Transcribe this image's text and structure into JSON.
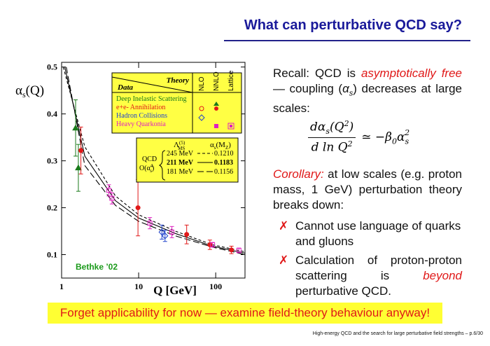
{
  "header": {
    "title": "What can perturbative QCD say?"
  },
  "recall": [
    "Recall:  QCD is ",
    "asymptotically free",
    " — coupling (",
    "α",
    "s",
    ") decreases at large scales:"
  ],
  "formula": {
    "num": [
      "dα",
      "s",
      "(Q",
      "2",
      ")"
    ],
    "den": [
      "d ln Q",
      "2"
    ],
    "rhs": [
      "≃ −β",
      "0",
      "α",
      "s",
      "2"
    ]
  },
  "corollary": [
    "Corollary:",
    " at low scales (e.g. proton mass, 1 GeV) perturbation theory breaks down:"
  ],
  "bullets": [
    {
      "mark": "✗",
      "text": [
        "Cannot use language of quarks and gluons"
      ]
    },
    {
      "mark": "✗",
      "text": [
        "Calculation of proton-proton scattering is ",
        "beyond",
        " perturbative QCD."
      ]
    }
  ],
  "banner": "Forget applicability for now — examine field-theory behaviour anyway!",
  "footer": "High-energy QCD and the search for large perturbative field strengths – p.6/30",
  "chart_data": {
    "type": "scatter",
    "xlabel": "Q [GeV]",
    "ylabel": [
      "α",
      "s",
      "(Q)"
    ],
    "annotation": "Bethke ’02",
    "log_x": true,
    "xlim": [
      1,
      240
    ],
    "ylim": [
      0.05,
      0.51
    ],
    "xticks": [
      1,
      10,
      100
    ],
    "yticks": [
      0.1,
      0.2,
      0.3,
      0.4,
      0.5
    ],
    "legend": {
      "theory": "Theory",
      "data": "Data",
      "columns": [
        "NLO",
        "NNLO",
        "Lattice"
      ]
    },
    "series": [
      {
        "name": "Deep Inelastic Scattering",
        "color": "#1a7a1a",
        "marker": "triangle",
        "filled": true,
        "x": [
          1.52,
          1.65
        ],
        "values": [
          0.37,
          0.285
        ],
        "errors": [
          0.06,
          0.05
        ]
      },
      {
        "name": "e+e- Annihilation",
        "color": "#e01818",
        "marker": "circle",
        "filled": true,
        "x": [
          1.78,
          9.8,
          42,
          84,
          160
        ],
        "values": [
          0.322,
          0.2,
          0.143,
          0.121,
          0.11
        ],
        "errors": [
          0.05,
          0.06,
          0.02,
          0.01,
          0.008
        ]
      },
      {
        "name": "Hadron Collisions",
        "color": "#2244cc",
        "marker": "diamond",
        "filled": false,
        "x": [
          20,
          22
        ],
        "values": [
          0.148,
          0.14
        ],
        "errors": [
          0.015,
          0.012
        ]
      },
      {
        "name": "Heavy Quarkonia",
        "color": "#e020c0",
        "marker": "square",
        "filled": false,
        "x": [
          4.1,
          4.5,
          14,
          27,
          91,
          200
        ],
        "values": [
          0.237,
          0.22,
          0.167,
          0.148,
          0.121,
          0.109
        ],
        "errors": [
          0.012,
          0.012,
          0.012,
          0.012,
          0.005,
          0.005
        ]
      }
    ],
    "inset": {
      "lambda": [
        "Λ",
        "(5)",
        "MS"
      ],
      "alpha": [
        "α",
        "s",
        "(M",
        "Z",
        ")"
      ],
      "qcd": "QCD",
      "order": [
        "O(α",
        "4",
        "s",
        ")"
      ]
    },
    "curves": [
      {
        "name": "245 MeV",
        "alpha_mz": "0.1210",
        "dash": "4,3",
        "x": [
          1.05,
          2,
          5,
          10,
          30,
          91,
          240
        ],
        "values": [
          0.5,
          0.33,
          0.225,
          0.185,
          0.15,
          0.121,
          0.106
        ]
      },
      {
        "name": "211 MeV",
        "alpha_mz": "0.1183",
        "dash": "none",
        "x": [
          1.1,
          2,
          5,
          10,
          30,
          91,
          240
        ],
        "values": [
          0.5,
          0.31,
          0.215,
          0.178,
          0.145,
          0.118,
          0.103
        ]
      },
      {
        "name": "181 MeV",
        "alpha_mz": "0.1156",
        "dash": "9,4",
        "x": [
          1.15,
          2,
          5,
          10,
          30,
          91,
          240
        ],
        "values": [
          0.5,
          0.29,
          0.205,
          0.171,
          0.14,
          0.116,
          0.1
        ]
      }
    ]
  }
}
